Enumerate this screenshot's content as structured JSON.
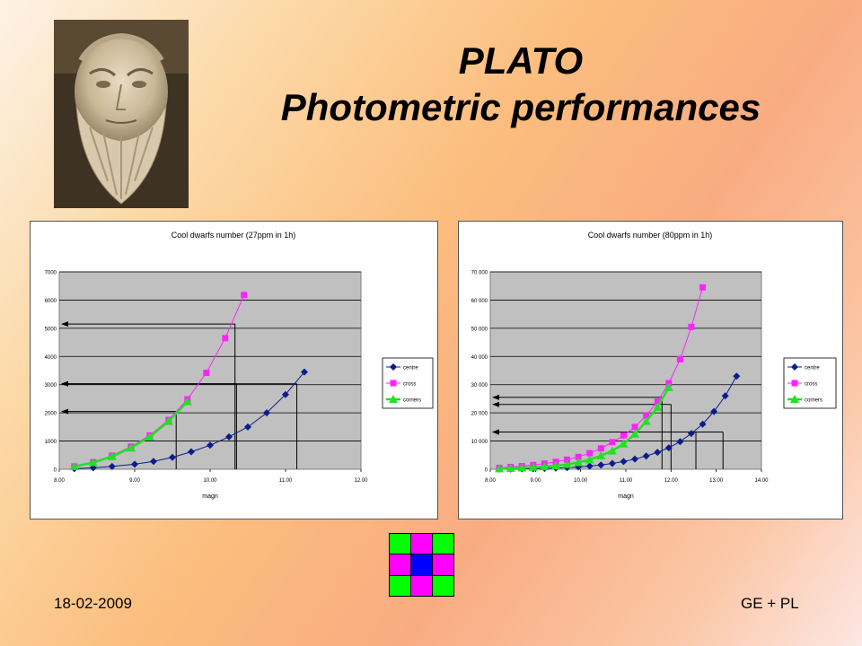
{
  "title": {
    "line1": "PLATO",
    "line2": "Photometric performances"
  },
  "footer": {
    "date": "18-02-2009",
    "authors": "GE + PL"
  },
  "colors": {
    "centre": "#0b1c8c",
    "cross": "#ff22ff",
    "corners": "#22e022",
    "plot_bg": "#c0c0c0"
  },
  "grid_icon": {
    "cells": [
      "#00ff00",
      "#ff00ff",
      "#00ff00",
      "#ff00ff",
      "#0000ff",
      "#ff00ff",
      "#00ff00",
      "#ff00ff",
      "#00ff00"
    ]
  },
  "chart_data": [
    {
      "type": "line",
      "title": "Cool dwarfs number (27ppm in 1h)",
      "xlabel": "magn",
      "ylabel": "",
      "xlim": [
        8.0,
        12.0
      ],
      "ylim": [
        0,
        7000
      ],
      "xticks": [
        8.0,
        9.0,
        10.0,
        11.0,
        12.0
      ],
      "xtick_labels": [
        "8.00",
        "9.00",
        "10.00",
        "11.00",
        "12.00"
      ],
      "yticks": [
        0,
        1000,
        2000,
        3000,
        4000,
        5000,
        6000,
        7000
      ],
      "ytick_labels": [
        "0",
        "1000",
        "2000",
        "3000",
        "4000",
        "5000",
        "6000",
        "7000"
      ],
      "grid": "horizontal",
      "legend_position": "right",
      "series": [
        {
          "name": "centre",
          "marker": "diamond",
          "x": [
            8.2,
            8.45,
            8.7,
            9.0,
            9.25,
            9.5,
            9.75,
            10.0,
            10.25,
            10.5,
            10.75,
            11.0,
            11.25
          ],
          "y": [
            20,
            50,
            100,
            180,
            280,
            420,
            620,
            850,
            1150,
            1500,
            2000,
            2650,
            3450
          ]
        },
        {
          "name": "cross",
          "marker": "square",
          "x": [
            8.2,
            8.45,
            8.7,
            8.95,
            9.2,
            9.45,
            9.7,
            9.95,
            10.2,
            10.45
          ],
          "y": [
            100,
            250,
            480,
            800,
            1200,
            1750,
            2480,
            3420,
            4650,
            6180
          ]
        },
        {
          "name": "corners",
          "marker": "triangle",
          "x": [
            8.2,
            8.45,
            8.7,
            8.95,
            9.2,
            9.45,
            9.7
          ],
          "y": [
            100,
            240,
            450,
            760,
            1150,
            1700,
            2400
          ]
        }
      ],
      "annotations": {
        "levels": [
          {
            "x": 9.55,
            "y": 2050
          },
          {
            "x": 10.35,
            "y": 3030
          },
          {
            "x": 11.15,
            "y": 3030
          },
          {
            "x": 10.33,
            "y": 5150
          }
        ]
      }
    },
    {
      "type": "line",
      "title": "Cool dwarfs number (80ppm in 1h)",
      "xlabel": "magn",
      "ylabel": "",
      "xlim": [
        8.0,
        14.0
      ],
      "ylim": [
        0,
        70000
      ],
      "xticks": [
        8.0,
        9.0,
        10.0,
        11.0,
        12.0,
        13.0,
        14.0
      ],
      "xtick_labels": [
        "8.00",
        "9.00",
        "10.00",
        "11.00",
        "12.00",
        "13.00",
        "14.00"
      ],
      "yticks": [
        0,
        10000,
        20000,
        30000,
        40000,
        50000,
        60000,
        70000
      ],
      "ytick_labels": [
        "0",
        "10 000",
        "20 000",
        "30 000",
        "40 000",
        "50 000",
        "60 000",
        "70 000"
      ],
      "grid": "horizontal",
      "legend_position": "right",
      "series": [
        {
          "name": "centre",
          "marker": "diamond",
          "x": [
            8.2,
            8.45,
            8.7,
            8.95,
            9.2,
            9.45,
            9.7,
            9.95,
            10.2,
            10.45,
            10.7,
            10.95,
            11.2,
            11.45,
            11.7,
            11.95,
            12.2,
            12.45,
            12.7,
            12.95,
            13.2,
            13.45
          ],
          "y": [
            50,
            80,
            120,
            180,
            260,
            380,
            550,
            780,
            1100,
            1500,
            2050,
            2750,
            3600,
            4700,
            6000,
            7600,
            9800,
            12700,
            16000,
            20500,
            26000,
            33000
          ]
        },
        {
          "name": "cross",
          "marker": "square",
          "x": [
            8.2,
            8.45,
            8.7,
            8.95,
            9.2,
            9.45,
            9.7,
            9.95,
            10.2,
            10.45,
            10.7,
            10.95,
            11.2,
            11.45,
            11.7,
            11.95,
            12.2,
            12.45,
            12.7
          ],
          "y": [
            500,
            800,
            1100,
            1500,
            2000,
            2600,
            3400,
            4400,
            5700,
            7400,
            9600,
            12000,
            15000,
            19000,
            24000,
            30500,
            39000,
            50500,
            64500
          ]
        },
        {
          "name": "corners",
          "marker": "triangle",
          "x": [
            8.2,
            8.45,
            8.7,
            8.95,
            9.2,
            9.45,
            9.7,
            9.95,
            10.2,
            10.45,
            10.7,
            10.95,
            11.2,
            11.45,
            11.7,
            11.95
          ],
          "y": [
            200,
            350,
            500,
            700,
            900,
            1200,
            1700,
            2400,
            3400,
            4800,
            6500,
            9000,
            12500,
            17000,
            22000,
            29000
          ]
        }
      ],
      "annotations": {
        "levels": [
          {
            "x": 11.8,
            "y": 25500
          },
          {
            "x": 12.0,
            "y": 23000
          },
          {
            "x": 12.55,
            "y": 13200
          },
          {
            "x": 13.15,
            "y": 13200
          }
        ]
      }
    }
  ]
}
